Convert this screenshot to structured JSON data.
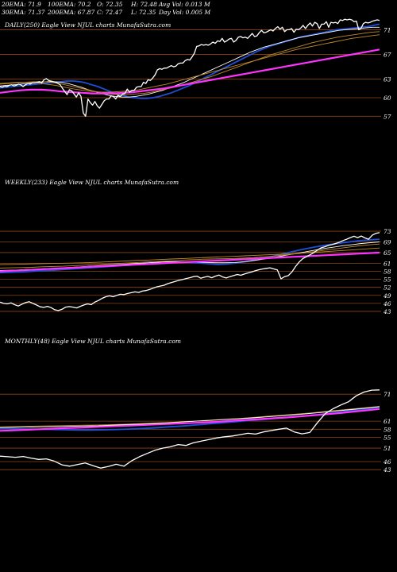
{
  "header": {
    "ema20": "20EMA: 71.9",
    "ema100": "100EMA: 70.2",
    "open": "O: 72.35",
    "high": "H: 72.48",
    "avg_vol": "Avg Vol: 0.013 M",
    "ema30": "30EMA: 71.37",
    "ema200": "200EMA: 67.87",
    "close": "C: 72.47",
    "low": "L: 72.35",
    "day_vol": "Day Vol: 0.005 M"
  },
  "colors": {
    "background": "#000000",
    "price": "#ffffff",
    "ema_short": "#1e4fd8",
    "ema_long": "#ff33ff",
    "ema_mid": "#c08a2a",
    "grid": "#8b4513",
    "text": "#ffffff"
  },
  "chart_data": [
    {
      "type": "line",
      "title": "DAILY(250) Eagle  View  NJUL  charts MunafaSutra.com",
      "yticks": [
        71,
        67,
        63,
        60,
        57
      ],
      "ylim": [
        55.5,
        73.5
      ],
      "x_count": 250,
      "series": [
        {
          "role": "price",
          "color": "#ffffff",
          "y": [
            61.8,
            61.7,
            61.9,
            61.8,
            62.0,
            62.1,
            61.9,
            62.0,
            62.2,
            62.1,
            61.8,
            62.1,
            62.3,
            62.2,
            62.4,
            62.4,
            62.5,
            62.6,
            62.4,
            62.9,
            63.1,
            62.8,
            62.7,
            62.6,
            62.5,
            62.3,
            62.1,
            61.5,
            61.0,
            60.5,
            61.3,
            61.1,
            60.6,
            60.1,
            60.8,
            60.2,
            57.5,
            57.0,
            59.8,
            59.2,
            58.8,
            59.4,
            58.7,
            58.3,
            58.9,
            59.5,
            59.8,
            59.8,
            60.3,
            60.2,
            59.8,
            60.4,
            60.2,
            60.6,
            60.7,
            61.4,
            60.9,
            61.2,
            61.2,
            61.7,
            61.8,
            61.8,
            62.5,
            62.3,
            62.9,
            62.8,
            63.2,
            63.7,
            64.5,
            64.7,
            64.6,
            64.8,
            64.8,
            65.0,
            65.2,
            65.0,
            65.1,
            65.5,
            65.6,
            65.6,
            66.0,
            66.2,
            66.1,
            66.6,
            67.2,
            68.3,
            68.4,
            68.6,
            68.5,
            68.6,
            68.5,
            68.7,
            69.0,
            68.8,
            69.2,
            69.1,
            69.6,
            69.0,
            69.2,
            69.5,
            69.6,
            69.0,
            69.3,
            69.8,
            69.9,
            69.7,
            69.8,
            69.6,
            70.0,
            70.4,
            69.9,
            70.0,
            70.5,
            70.9,
            70.5,
            70.6,
            70.8,
            71.0,
            70.8,
            71.2,
            71.5,
            71.1,
            71.4,
            70.7,
            71.0,
            71.0,
            71.2,
            70.6,
            71.1,
            71.0,
            71.3,
            71.7,
            71.2,
            71.7,
            72.1,
            71.6,
            72.2,
            72.0,
            71.2,
            71.9,
            71.9,
            72.3,
            71.4,
            72.2,
            72.1,
            72.2,
            72.0,
            72.6,
            72.5,
            72.7,
            72.6,
            72.7,
            72.6,
            72.3,
            72.4,
            71.0,
            71.2,
            72.0,
            72.2,
            72.1,
            72.2,
            72.4,
            72.5,
            72.6,
            72.5
          ]
        },
        {
          "role": "ema20",
          "color": "#1e4fd8",
          "y": [
            61.6,
            61.7,
            61.8,
            61.9,
            62.0,
            62.1,
            62.2,
            62.3,
            62.4,
            62.5,
            62.6,
            62.7,
            62.7,
            62.6,
            62.4,
            62.1,
            61.8,
            61.4,
            61.0,
            60.7,
            60.4,
            60.1,
            60.0,
            59.9,
            59.9,
            60.0,
            60.2,
            60.5,
            60.8,
            61.2,
            61.6,
            62.0,
            62.5,
            63.0,
            63.5,
            64.0,
            64.5,
            65.0,
            65.5,
            66.0,
            66.5,
            67.0,
            67.5,
            67.9,
            68.3,
            68.6,
            68.9,
            69.2,
            69.5,
            69.8,
            70.0,
            70.2,
            70.4,
            70.6,
            70.8,
            71.0,
            71.1,
            71.2,
            71.3,
            71.4,
            71.5,
            71.7,
            71.9
          ]
        },
        {
          "role": "ema30",
          "color": "#ffffff",
          "y": [
            61.9,
            62.0,
            62.1,
            62.2,
            62.3,
            62.4,
            62.5,
            62.6,
            62.6,
            62.5,
            62.3,
            62.0,
            61.7,
            61.3,
            61.0,
            60.7,
            60.4,
            60.2,
            60.1,
            60.1,
            60.2,
            60.4,
            60.6,
            60.9,
            61.2,
            61.6,
            62.0,
            62.4,
            62.9,
            63.4,
            63.9,
            64.4,
            64.9,
            65.4,
            65.9,
            66.4,
            66.9,
            67.4,
            67.8,
            68.2,
            68.5,
            68.8,
            69.1,
            69.4,
            69.7,
            69.9,
            70.1,
            70.3,
            70.5,
            70.7,
            70.9,
            71.0,
            71.1,
            71.2,
            71.3,
            71.4,
            71.4
          ]
        },
        {
          "role": "ema50",
          "color": "#c08a2a",
          "y": [
            62.2,
            62.3,
            62.4,
            62.5,
            62.6,
            62.6,
            62.5,
            62.3,
            62.0,
            61.7,
            61.4,
            61.1,
            60.8,
            60.6,
            60.5,
            60.5,
            60.6,
            60.7,
            60.9,
            61.2,
            61.5,
            61.8,
            62.2,
            62.6,
            63.0,
            63.4,
            63.9,
            64.4,
            64.9,
            65.4,
            65.9,
            66.4,
            66.9,
            67.3,
            67.7,
            68.1,
            68.5,
            68.9,
            69.2,
            69.5,
            69.8,
            70.0,
            70.2,
            70.4,
            70.6,
            70.7
          ]
        },
        {
          "role": "ema100",
          "color": "#c08a2a",
          "y": [
            62.3,
            62.4,
            62.5,
            62.5,
            62.4,
            62.2,
            62.0,
            61.7,
            61.4,
            61.2,
            61.0,
            60.9,
            60.9,
            61.0,
            61.1,
            61.3,
            61.6,
            61.9,
            62.2,
            62.6,
            63.0,
            63.4,
            63.8,
            64.2,
            64.6,
            65.0,
            65.4,
            65.8,
            66.2,
            66.6,
            67.0,
            67.4,
            67.8,
            68.1,
            68.4,
            68.7,
            69.0,
            69.3,
            69.6,
            69.8,
            70.0,
            70.2
          ]
        },
        {
          "role": "ema200",
          "color": "#ff33ff",
          "y": [
            60.8,
            61.0,
            61.2,
            61.3,
            61.3,
            61.2,
            61.0,
            60.9,
            60.8,
            60.7,
            60.7,
            60.7,
            60.8,
            60.9,
            61.1,
            61.3,
            61.5,
            61.8,
            62.1,
            62.4,
            62.7,
            63.0,
            63.3,
            63.6,
            63.9,
            64.2,
            64.5,
            64.8,
            65.1,
            65.4,
            65.7,
            66.0,
            66.3,
            66.6,
            66.9,
            67.2,
            67.5,
            67.8
          ]
        }
      ]
    },
    {
      "type": "line",
      "title": "WEEKLY(233) Eagle  View  NJUL  charts MunafaSutra.com",
      "yticks": [
        73,
        69,
        65,
        61,
        58,
        55,
        52,
        49,
        46,
        43
      ],
      "ylim": [
        41.5,
        74.5
      ],
      "x_count": 233,
      "series": [
        {
          "role": "price",
          "color": "#ffffff",
          "y": [
            46.5,
            46.0,
            45.8,
            46.2,
            45.5,
            45.0,
            45.7,
            46.3,
            46.6,
            46.0,
            45.4,
            44.7,
            44.5,
            44.9,
            44.4,
            43.6,
            43.3,
            43.8,
            44.6,
            44.8,
            44.6,
            44.3,
            44.9,
            45.4,
            45.8,
            45.5,
            46.5,
            47.1,
            47.9,
            48.5,
            48.8,
            48.5,
            49.0,
            49.4,
            49.3,
            49.7,
            50.0,
            50.3,
            50.1,
            50.6,
            50.8,
            51.2,
            51.7,
            52.2,
            52.5,
            52.8,
            53.4,
            53.8,
            54.2,
            54.6,
            54.9,
            55.3,
            55.6,
            56.0,
            56.2,
            55.4,
            55.8,
            56.1,
            55.6,
            56.2,
            56.6,
            55.9,
            55.5,
            56.0,
            56.4,
            56.8,
            56.5,
            57.0,
            57.4,
            57.8,
            58.2,
            58.6,
            58.9,
            59.1,
            59.3,
            58.9,
            58.5,
            55.2,
            56.0,
            56.4,
            57.8,
            59.8,
            61.5,
            62.8,
            63.5,
            64.2,
            65.0,
            66.0,
            66.8,
            67.2,
            67.7,
            68.0,
            68.4,
            68.9,
            69.5,
            70.0,
            70.6,
            71.1,
            70.6,
            71.2,
            70.5,
            70.0,
            71.5,
            72.2,
            72.5
          ]
        },
        {
          "role": "ema20",
          "color": "#1e4fd8",
          "y": [
            57.5,
            57.6,
            57.7,
            57.8,
            58.0,
            58.2,
            58.3,
            58.5,
            58.7,
            58.9,
            59.1,
            59.3,
            59.5,
            59.7,
            59.9,
            60.1,
            60.3,
            60.6,
            60.9,
            61.2,
            61.4,
            61.5,
            61.5,
            61.4,
            61.2,
            61.0,
            60.8,
            60.6,
            60.7,
            61.0,
            61.4,
            61.9,
            62.5,
            63.1,
            63.8,
            64.5,
            65.2,
            65.9,
            66.5,
            67.1,
            67.6,
            68.1,
            68.5,
            68.9,
            69.3,
            69.6,
            69.8,
            70.0
          ]
        },
        {
          "role": "ema30",
          "color": "#ffffff",
          "y": [
            58.3,
            58.4,
            58.5,
            58.7,
            58.8,
            59.0,
            59.1,
            59.3,
            59.5,
            59.7,
            59.9,
            60.1,
            60.3,
            60.5,
            60.7,
            60.9,
            61.1,
            61.3,
            61.5,
            61.6,
            61.6,
            61.5,
            61.4,
            61.3,
            61.2,
            61.2,
            61.3,
            61.6,
            62.0,
            62.5,
            63.0,
            63.6,
            64.2,
            64.8,
            65.4,
            66.0,
            66.6,
            67.1,
            67.6,
            68.0,
            68.4,
            68.7,
            69.0
          ]
        },
        {
          "role": "ema50",
          "color": "#c08a2a",
          "y": [
            59.2,
            59.3,
            59.4,
            59.5,
            59.7,
            59.8,
            59.9,
            60.1,
            60.3,
            60.5,
            60.7,
            60.9,
            61.1,
            61.3,
            61.5,
            61.7,
            61.9,
            62.1,
            62.3,
            62.5,
            62.6,
            62.7,
            62.8,
            62.9,
            63.1,
            63.4,
            63.7,
            64.1,
            64.5,
            65.0,
            65.5,
            66.0,
            66.5,
            67.0,
            67.5,
            67.9,
            68.2
          ]
        },
        {
          "role": "ema100",
          "color": "#c08a2a",
          "y": [
            60.5,
            60.6,
            60.7,
            60.8,
            60.9,
            61.0,
            61.1,
            61.2,
            61.4,
            61.6,
            61.8,
            62.0,
            62.2,
            62.4,
            62.6,
            62.8,
            63.0,
            63.2,
            63.4,
            63.6,
            63.8,
            64.0,
            64.2,
            64.4,
            64.6,
            64.9,
            65.2,
            65.5,
            65.8,
            66.1,
            66.4,
            66.7
          ]
        },
        {
          "role": "ema200",
          "color": "#ff33ff",
          "y": [
            58.0,
            58.2,
            58.4,
            58.6,
            58.8,
            59.0,
            59.2,
            59.4,
            59.6,
            59.8,
            60.0,
            60.2,
            60.4,
            60.6,
            60.8,
            61.0,
            61.2,
            61.4,
            61.6,
            61.8,
            62.0,
            62.2,
            62.4,
            62.6,
            62.8,
            63.0,
            63.2,
            63.4,
            63.6,
            63.8,
            64.0,
            64.2,
            64.4,
            64.6,
            64.8,
            65.0
          ]
        }
      ]
    },
    {
      "type": "line",
      "title": "MONTHLY(48) Eagle  View  NJUL  charts MunafaSutra.com",
      "yticks": [
        71,
        61,
        58,
        55,
        51,
        46,
        43
      ],
      "ylim": [
        41,
        74
      ],
      "x_count": 48,
      "series": [
        {
          "role": "price",
          "color": "#ffffff",
          "y": [
            48.0,
            47.8,
            47.6,
            47.9,
            47.3,
            46.8,
            47.0,
            46.2,
            44.8,
            44.3,
            44.9,
            45.5,
            44.5,
            43.6,
            44.2,
            45.0,
            44.3,
            46.3,
            47.8,
            49.0,
            50.2,
            51.0,
            51.5,
            52.3,
            52.0,
            53.0,
            53.6,
            54.2,
            54.8,
            55.2,
            55.5,
            56.0,
            56.5,
            56.2,
            57.0,
            57.5,
            58.0,
            58.4,
            57.0,
            56.3,
            56.8,
            60.5,
            63.8,
            65.6,
            67.0,
            68.2,
            70.4,
            71.8,
            72.5,
            72.6
          ]
        },
        {
          "role": "ema_short",
          "color": "#1e4fd8",
          "y": [
            58.2,
            58.2,
            58.1,
            58.0,
            57.9,
            57.8,
            57.7,
            57.7,
            57.8,
            57.9,
            58.1,
            58.3,
            58.6,
            58.9,
            59.2,
            59.6,
            60.0,
            60.4,
            60.8,
            61.2,
            61.6,
            62.0,
            62.4,
            62.8,
            63.3,
            63.8,
            64.4,
            65.0,
            65.6,
            66.2
          ]
        },
        {
          "role": "ema_mid",
          "color": "#c08a2a",
          "y": [
            58.9,
            59.0,
            59.1,
            59.2,
            59.3,
            59.4,
            59.5,
            59.6,
            59.7,
            59.9,
            60.1,
            60.3,
            60.5,
            60.8,
            61.1,
            61.4,
            61.7,
            62.0,
            62.4,
            62.8,
            63.2,
            63.6,
            64.0,
            64.5,
            65.0,
            65.5,
            66.0,
            66.5
          ]
        },
        {
          "role": "ema_long",
          "color": "#ff33ff",
          "y": [
            57.4,
            57.6,
            57.8,
            58.0,
            58.2,
            58.4,
            58.6,
            58.8,
            59.0,
            59.2,
            59.4,
            59.6,
            59.8,
            60.0,
            60.2,
            60.4,
            60.6,
            60.9,
            61.2,
            61.5,
            61.8,
            62.1,
            62.4,
            62.8,
            63.2,
            63.6,
            64.0,
            64.5,
            65.0,
            65.5
          ]
        },
        {
          "role": "ema_thin",
          "color": "#ffffff",
          "y": [
            58.6,
            58.7,
            58.8,
            58.9,
            59.0,
            59.1,
            59.2,
            59.3,
            59.5,
            59.7,
            59.9,
            60.1,
            60.4,
            60.7,
            61.0,
            61.3,
            61.6,
            61.9,
            62.2,
            62.6,
            63.0,
            63.4,
            63.8,
            64.3,
            64.8,
            65.3,
            65.8,
            66.3
          ]
        }
      ]
    }
  ]
}
